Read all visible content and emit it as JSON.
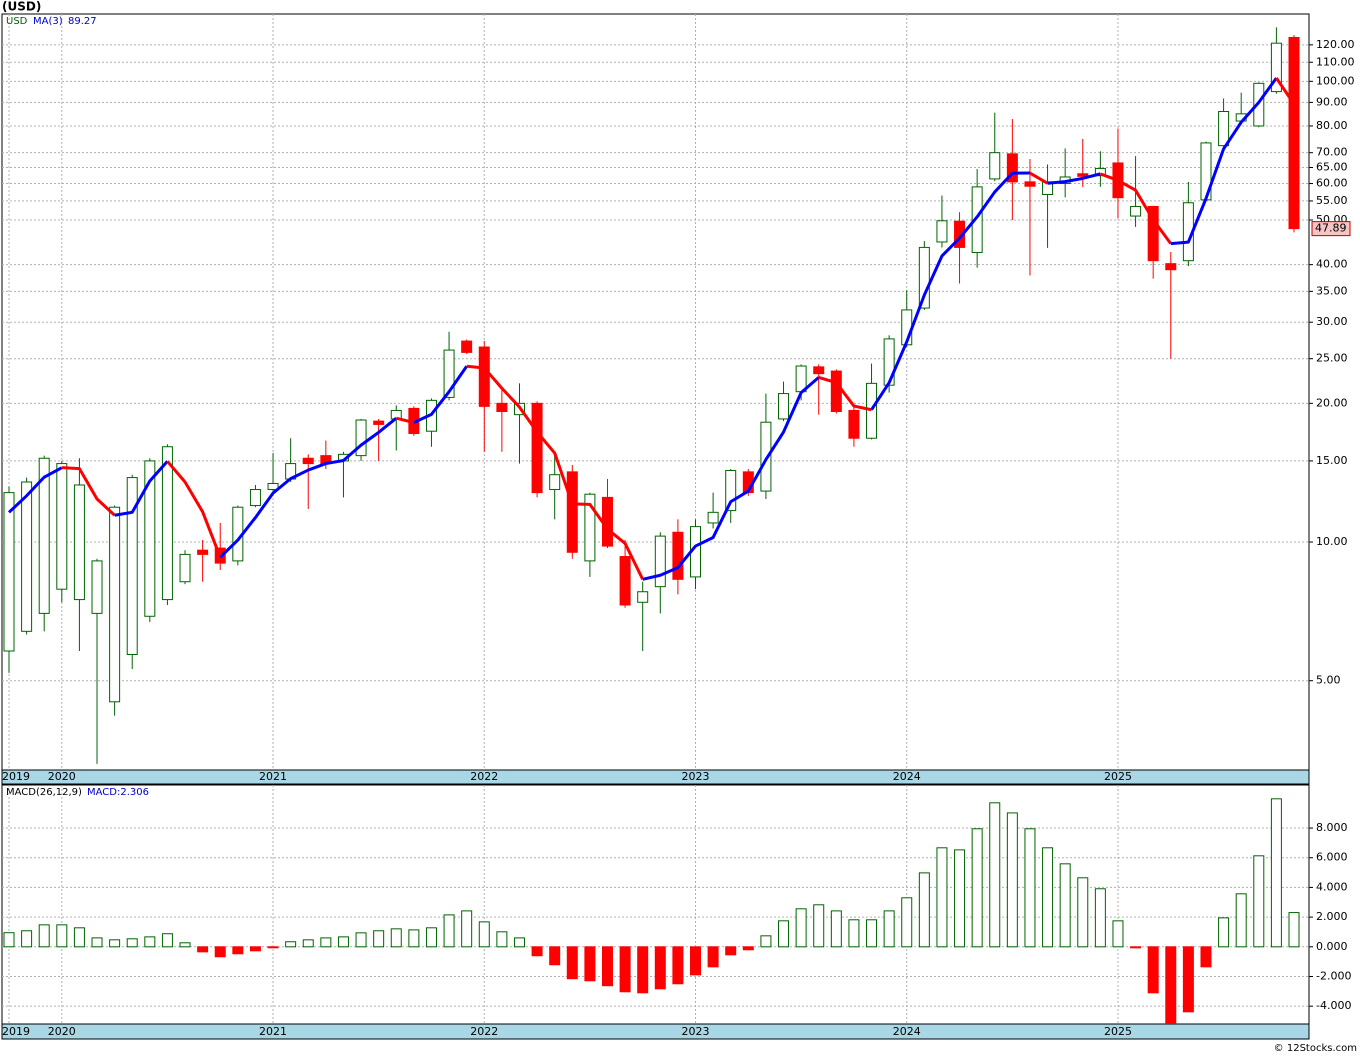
{
  "title": "(USD)",
  "footer": "© 12Stocks.com",
  "chart_data": [
    {
      "type": "candlestick",
      "price_name": "USD",
      "log_scale": true,
      "grid": true,
      "up_color": "#006400",
      "down_color": "#ff0000",
      "categories": [
        "2019",
        null,
        null,
        "2020",
        null,
        null,
        null,
        null,
        null,
        null,
        null,
        null,
        null,
        null,
        null,
        "2021",
        null,
        null,
        null,
        null,
        null,
        null,
        null,
        null,
        null,
        null,
        null,
        "2022",
        null,
        null,
        null,
        null,
        null,
        null,
        null,
        null,
        null,
        null,
        null,
        "2023",
        null,
        null,
        null,
        null,
        null,
        null,
        null,
        null,
        null,
        null,
        null,
        "2024",
        null,
        null,
        null,
        null,
        null,
        null,
        null,
        null,
        null,
        null,
        null,
        "2025",
        null,
        null,
        null,
        null,
        null,
        null,
        null,
        null,
        null,
        null
      ],
      "open": [
        5.8,
        6.4,
        7.0,
        7.9,
        7.5,
        7.0,
        4.5,
        5.7,
        6.9,
        7.5,
        8.2,
        9.6,
        9.7,
        9.1,
        12.0,
        13.0,
        13.7,
        15.2,
        15.4,
        15.0,
        15.4,
        18.3,
        18.5,
        19.5,
        17.4,
        20.6,
        27.3,
        26.5,
        20.0,
        18.9,
        20.0,
        13.0,
        14.2,
        9.1,
        12.5,
        9.3,
        7.4,
        8.0,
        10.5,
        8.4,
        11.0,
        11.7,
        14.2,
        12.9,
        18.5,
        21.2,
        24.0,
        23.5,
        19.3,
        16.8,
        21.9,
        26.8,
        32.2,
        44.8,
        49.7,
        42.5,
        61.4,
        69.6,
        60.5,
        56.8,
        60.0,
        63.0,
        62.4,
        66.5,
        51.0,
        53.5,
        40.2,
        40.8,
        55.3,
        72.5,
        82.0,
        80.0,
        95.0,
        124.5
      ],
      "high": [
        13.2,
        13.8,
        15.4,
        15.0,
        15.2,
        9.2,
        12.0,
        14.0,
        15.2,
        16.3,
        9.6,
        10.1,
        11.0,
        12.0,
        13.3,
        15.6,
        16.8,
        15.5,
        16.6,
        15.7,
        18.5,
        18.5,
        19.8,
        19.7,
        20.5,
        28.6,
        27.5,
        27.3,
        21.6,
        22.1,
        20.2,
        15.7,
        14.7,
        12.8,
        13.7,
        10.1,
        8.2,
        10.5,
        11.2,
        11.2,
        12.8,
        14.4,
        14.4,
        21.0,
        22.3,
        24.3,
        24.3,
        23.7,
        19.9,
        24.4,
        28.1,
        35.2,
        45.0,
        56.5,
        52.0,
        64.5,
        85.5,
        82.8,
        67.8,
        66.0,
        71.5,
        75.0,
        70.5,
        79.0,
        68.8,
        53.7,
        42.6,
        60.5,
        74.0,
        91.8,
        94.5,
        99.5,
        131,
        126
      ],
      "low": [
        5.2,
        6.3,
        6.4,
        7.4,
        5.8,
        3.3,
        4.2,
        5.3,
        6.7,
        7.3,
        8.1,
        8.2,
        8.7,
        8.9,
        11.9,
        12.7,
        13.5,
        11.8,
        14.4,
        12.5,
        15.0,
        15.0,
        15.8,
        17.0,
        16.1,
        20.3,
        25.6,
        15.7,
        15.7,
        14.8,
        12.5,
        11.2,
        9.2,
        8.4,
        9.7,
        7.2,
        5.8,
        7.0,
        7.7,
        7.9,
        10.7,
        11.0,
        12.6,
        12.4,
        18.3,
        20.3,
        18.9,
        19.0,
        16.1,
        16.7,
        21.1,
        26.5,
        31.9,
        43.6,
        36.4,
        39.4,
        60.7,
        50.0,
        37.9,
        43.5,
        56.0,
        59.0,
        59.0,
        50.5,
        48.3,
        37.3,
        25.0,
        39.7,
        55.0,
        72.0,
        81.5,
        79.5,
        94,
        47.0
      ],
      "close": [
        12.8,
        13.5,
        15.2,
        14.8,
        13.3,
        9.1,
        11.9,
        13.8,
        15.0,
        16.1,
        9.4,
        9.4,
        9.0,
        11.9,
        13.0,
        13.4,
        14.8,
        14.8,
        14.8,
        15.5,
        18.4,
        18.0,
        19.3,
        17.2,
        20.3,
        26.1,
        25.8,
        19.7,
        19.2,
        20.0,
        12.8,
        14.0,
        9.5,
        12.7,
        9.8,
        7.3,
        7.8,
        10.3,
        8.3,
        10.8,
        11.6,
        14.3,
        12.8,
        18.2,
        21.0,
        24.1,
        23.2,
        19.2,
        16.8,
        22.1,
        27.6,
        31.9,
        43.6,
        49.8,
        43.6,
        59.0,
        70.0,
        60.5,
        59.2,
        60.5,
        62.0,
        62.2,
        64.7,
        55.9,
        53.5,
        40.8,
        39.0,
        54.5,
        73.5,
        86.0,
        85.0,
        99.0,
        121,
        47.89
      ],
      "ma": {
        "name": "MA(3)",
        "rising_color": "#0000ff",
        "falling_color": "#ff0000",
        "values": [
          11.6,
          12.6,
          13.83,
          14.5,
          14.43,
          12.4,
          11.43,
          11.6,
          13.57,
          14.97,
          13.5,
          11.63,
          9.27,
          10.1,
          11.3,
          12.77,
          13.73,
          14.33,
          14.8,
          15.03,
          16.23,
          17.3,
          18.57,
          18.17,
          18.93,
          21.2,
          24.07,
          23.87,
          21.57,
          19.63,
          17.33,
          15.6,
          12.1,
          12.07,
          10.67,
          9.93,
          8.3,
          8.47,
          8.8,
          9.8,
          10.23,
          12.23,
          12.9,
          15.1,
          17.33,
          21.1,
          22.77,
          22.17,
          19.73,
          19.37,
          22.17,
          27.2,
          34.37,
          41.77,
          45.67,
          50.8,
          57.53,
          63.17,
          63.23,
          60.07,
          60.57,
          61.57,
          62.97,
          60.93,
          58.03,
          50.07,
          44.43,
          44.77,
          55.67,
          71.33,
          81.5,
          90,
          101.67,
          89.27
        ]
      },
      "ylim": [
        3.2,
        140
      ],
      "yticks": [
        {
          "value": 120,
          "label": "120.00"
        },
        {
          "value": 110,
          "label": "110.00"
        },
        {
          "value": 100,
          "label": "100.00"
        },
        {
          "value": 90,
          "label": "90.00"
        },
        {
          "value": 80,
          "label": "80.00"
        },
        {
          "value": 70,
          "label": "70.00"
        },
        {
          "value": 65,
          "label": "65.00"
        },
        {
          "value": 60,
          "label": "60.00"
        },
        {
          "value": 55,
          "label": "55.00"
        },
        {
          "value": 50,
          "label": "50.00"
        },
        {
          "value": 40,
          "label": "40.00"
        },
        {
          "value": 35,
          "label": "35.00"
        },
        {
          "value": 30,
          "label": "30.00"
        },
        {
          "value": 25,
          "label": "25.00"
        },
        {
          "value": 20,
          "label": "20.00"
        },
        {
          "value": 15,
          "label": "15.00"
        },
        {
          "value": 10,
          "label": "10.00"
        },
        {
          "value": 5,
          "label": "5.00"
        }
      ]
    },
    {
      "type": "bar",
      "grid": true,
      "pos_color": "#006400",
      "neg_color": "#ff0000",
      "current_label": "MACD:",
      "categories": [
        "2019",
        null,
        null,
        "2020",
        null,
        null,
        null,
        null,
        null,
        null,
        null,
        null,
        null,
        null,
        null,
        "2021",
        null,
        null,
        null,
        null,
        null,
        null,
        null,
        null,
        null,
        null,
        null,
        "2022",
        null,
        null,
        null,
        null,
        null,
        null,
        null,
        null,
        null,
        null,
        null,
        "2023",
        null,
        null,
        null,
        null,
        null,
        null,
        null,
        null,
        null,
        null,
        null,
        "2024",
        null,
        null,
        null,
        null,
        null,
        null,
        null,
        null,
        null,
        null,
        null,
        "2025",
        null,
        null,
        null,
        null,
        null,
        null,
        null,
        null,
        null,
        null
      ],
      "series": [
        {
          "name": "MACD(26,12,9)",
          "values": [
            0.95,
            1.08,
            1.48,
            1.48,
            1.28,
            0.6,
            0.47,
            0.54,
            0.67,
            0.88,
            0.27,
            -0.34,
            -0.67,
            -0.47,
            -0.27,
            -0.02,
            0.34,
            0.47,
            0.6,
            0.67,
            0.94,
            1.08,
            1.21,
            1.14,
            1.28,
            2.15,
            2.42,
            1.68,
            1.01,
            0.6,
            -0.6,
            -1.21,
            -2.15,
            -2.29,
            -2.62,
            -3.03,
            -3.1,
            -2.83,
            -2.49,
            -1.89,
            -1.35,
            -0.54,
            -0.2,
            0.74,
            1.75,
            2.56,
            2.83,
            2.42,
            1.82,
            1.82,
            2.42,
            3.3,
            4.98,
            6.67,
            6.53,
            7.95,
            9.7,
            9.02,
            7.95,
            6.67,
            5.59,
            4.65,
            3.91,
            1.75,
            -0.07,
            -3.1,
            -5.4,
            -4.38,
            -1.35,
            1.95,
            3.57,
            6.13,
            9.97,
            2.306
          ]
        }
      ],
      "ylim": [
        -5.2,
        10.9
      ],
      "yticks": [
        {
          "value": 8,
          "label": "8.000"
        },
        {
          "value": 6,
          "label": "6.000"
        },
        {
          "value": 4,
          "label": "4.000"
        },
        {
          "value": 2,
          "label": "2.000"
        },
        {
          "value": 0,
          "label": "0.000"
        },
        {
          "value": -2,
          "label": "-2.000"
        },
        {
          "value": -4,
          "label": "-4.000"
        }
      ]
    }
  ]
}
